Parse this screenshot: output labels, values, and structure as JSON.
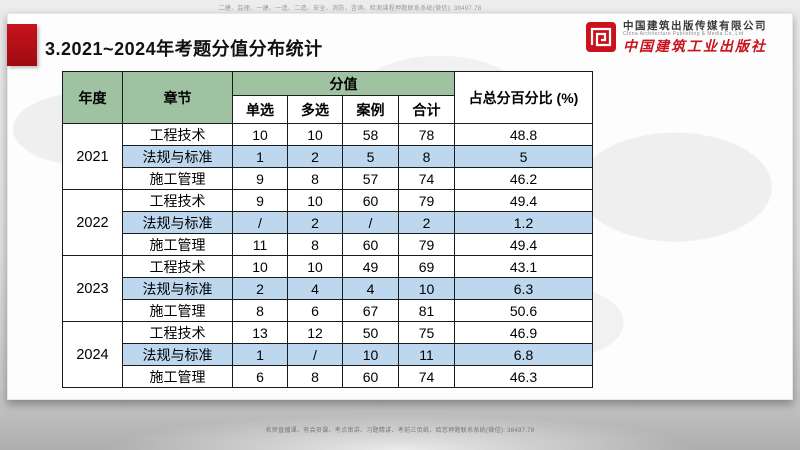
{
  "title": "3.2021~2024年考题分值分布统计",
  "watermark_top": "二建、监理、一建、一造、二造、安全、消防、咨询、检测课程押题联系系统(微信): 38497.78",
  "watermark_bottom": "名师直播课、有会员课、考点串讲、习题精讲、考前三页纸、给您押题联系系统(微信): 38497.78",
  "logo": {
    "company_cn": "中国建筑出版传媒有限公司",
    "company_en": "China Architecture Publishing & Media Co.,Ltd",
    "press_cn": "中国建筑工业出版社"
  },
  "colors": {
    "header_green": "#9FC3A1",
    "row_blue": "#BDD7EE",
    "accent_red": "#C9121B",
    "accent_red_dark": "#9E0C13"
  },
  "table": {
    "headers": {
      "year": "年度",
      "chapter": "章节",
      "score_group": "分值",
      "single": "单选",
      "multiple": "多选",
      "case": "案例",
      "total": "合计",
      "percent": "占总分百分比 (%)"
    },
    "groups": [
      {
        "year": "2021",
        "rows": [
          {
            "chapter": "工程技术",
            "single": "10",
            "multiple": "10",
            "case": "58",
            "total": "78",
            "percent": "48.8",
            "highlight": false
          },
          {
            "chapter": "法规与标准",
            "single": "1",
            "multiple": "2",
            "case": "5",
            "total": "8",
            "percent": "5",
            "highlight": true
          },
          {
            "chapter": "施工管理",
            "single": "9",
            "multiple": "8",
            "case": "57",
            "total": "74",
            "percent": "46.2",
            "highlight": false
          }
        ]
      },
      {
        "year": "2022",
        "rows": [
          {
            "chapter": "工程技术",
            "single": "9",
            "multiple": "10",
            "case": "60",
            "total": "79",
            "percent": "49.4",
            "highlight": false
          },
          {
            "chapter": "法规与标准",
            "single": "/",
            "multiple": "2",
            "case": "/",
            "total": "2",
            "percent": "1.2",
            "highlight": true
          },
          {
            "chapter": "施工管理",
            "single": "11",
            "multiple": "8",
            "case": "60",
            "total": "79",
            "percent": "49.4",
            "highlight": false
          }
        ]
      },
      {
        "year": "2023",
        "rows": [
          {
            "chapter": "工程技术",
            "single": "10",
            "multiple": "10",
            "case": "49",
            "total": "69",
            "percent": "43.1",
            "highlight": false
          },
          {
            "chapter": "法规与标准",
            "single": "2",
            "multiple": "4",
            "case": "4",
            "total": "10",
            "percent": "6.3",
            "highlight": true
          },
          {
            "chapter": "施工管理",
            "single": "8",
            "multiple": "6",
            "case": "67",
            "total": "81",
            "percent": "50.6",
            "highlight": false
          }
        ]
      },
      {
        "year": "2024",
        "rows": [
          {
            "chapter": "工程技术",
            "single": "13",
            "multiple": "12",
            "case": "50",
            "total": "75",
            "percent": "46.9",
            "highlight": false
          },
          {
            "chapter": "法规与标准",
            "single": "1",
            "multiple": "/",
            "case": "10",
            "total": "11",
            "percent": "6.8",
            "highlight": true
          },
          {
            "chapter": "施工管理",
            "single": "6",
            "multiple": "8",
            "case": "60",
            "total": "74",
            "percent": "46.3",
            "highlight": false
          }
        ]
      }
    ]
  }
}
